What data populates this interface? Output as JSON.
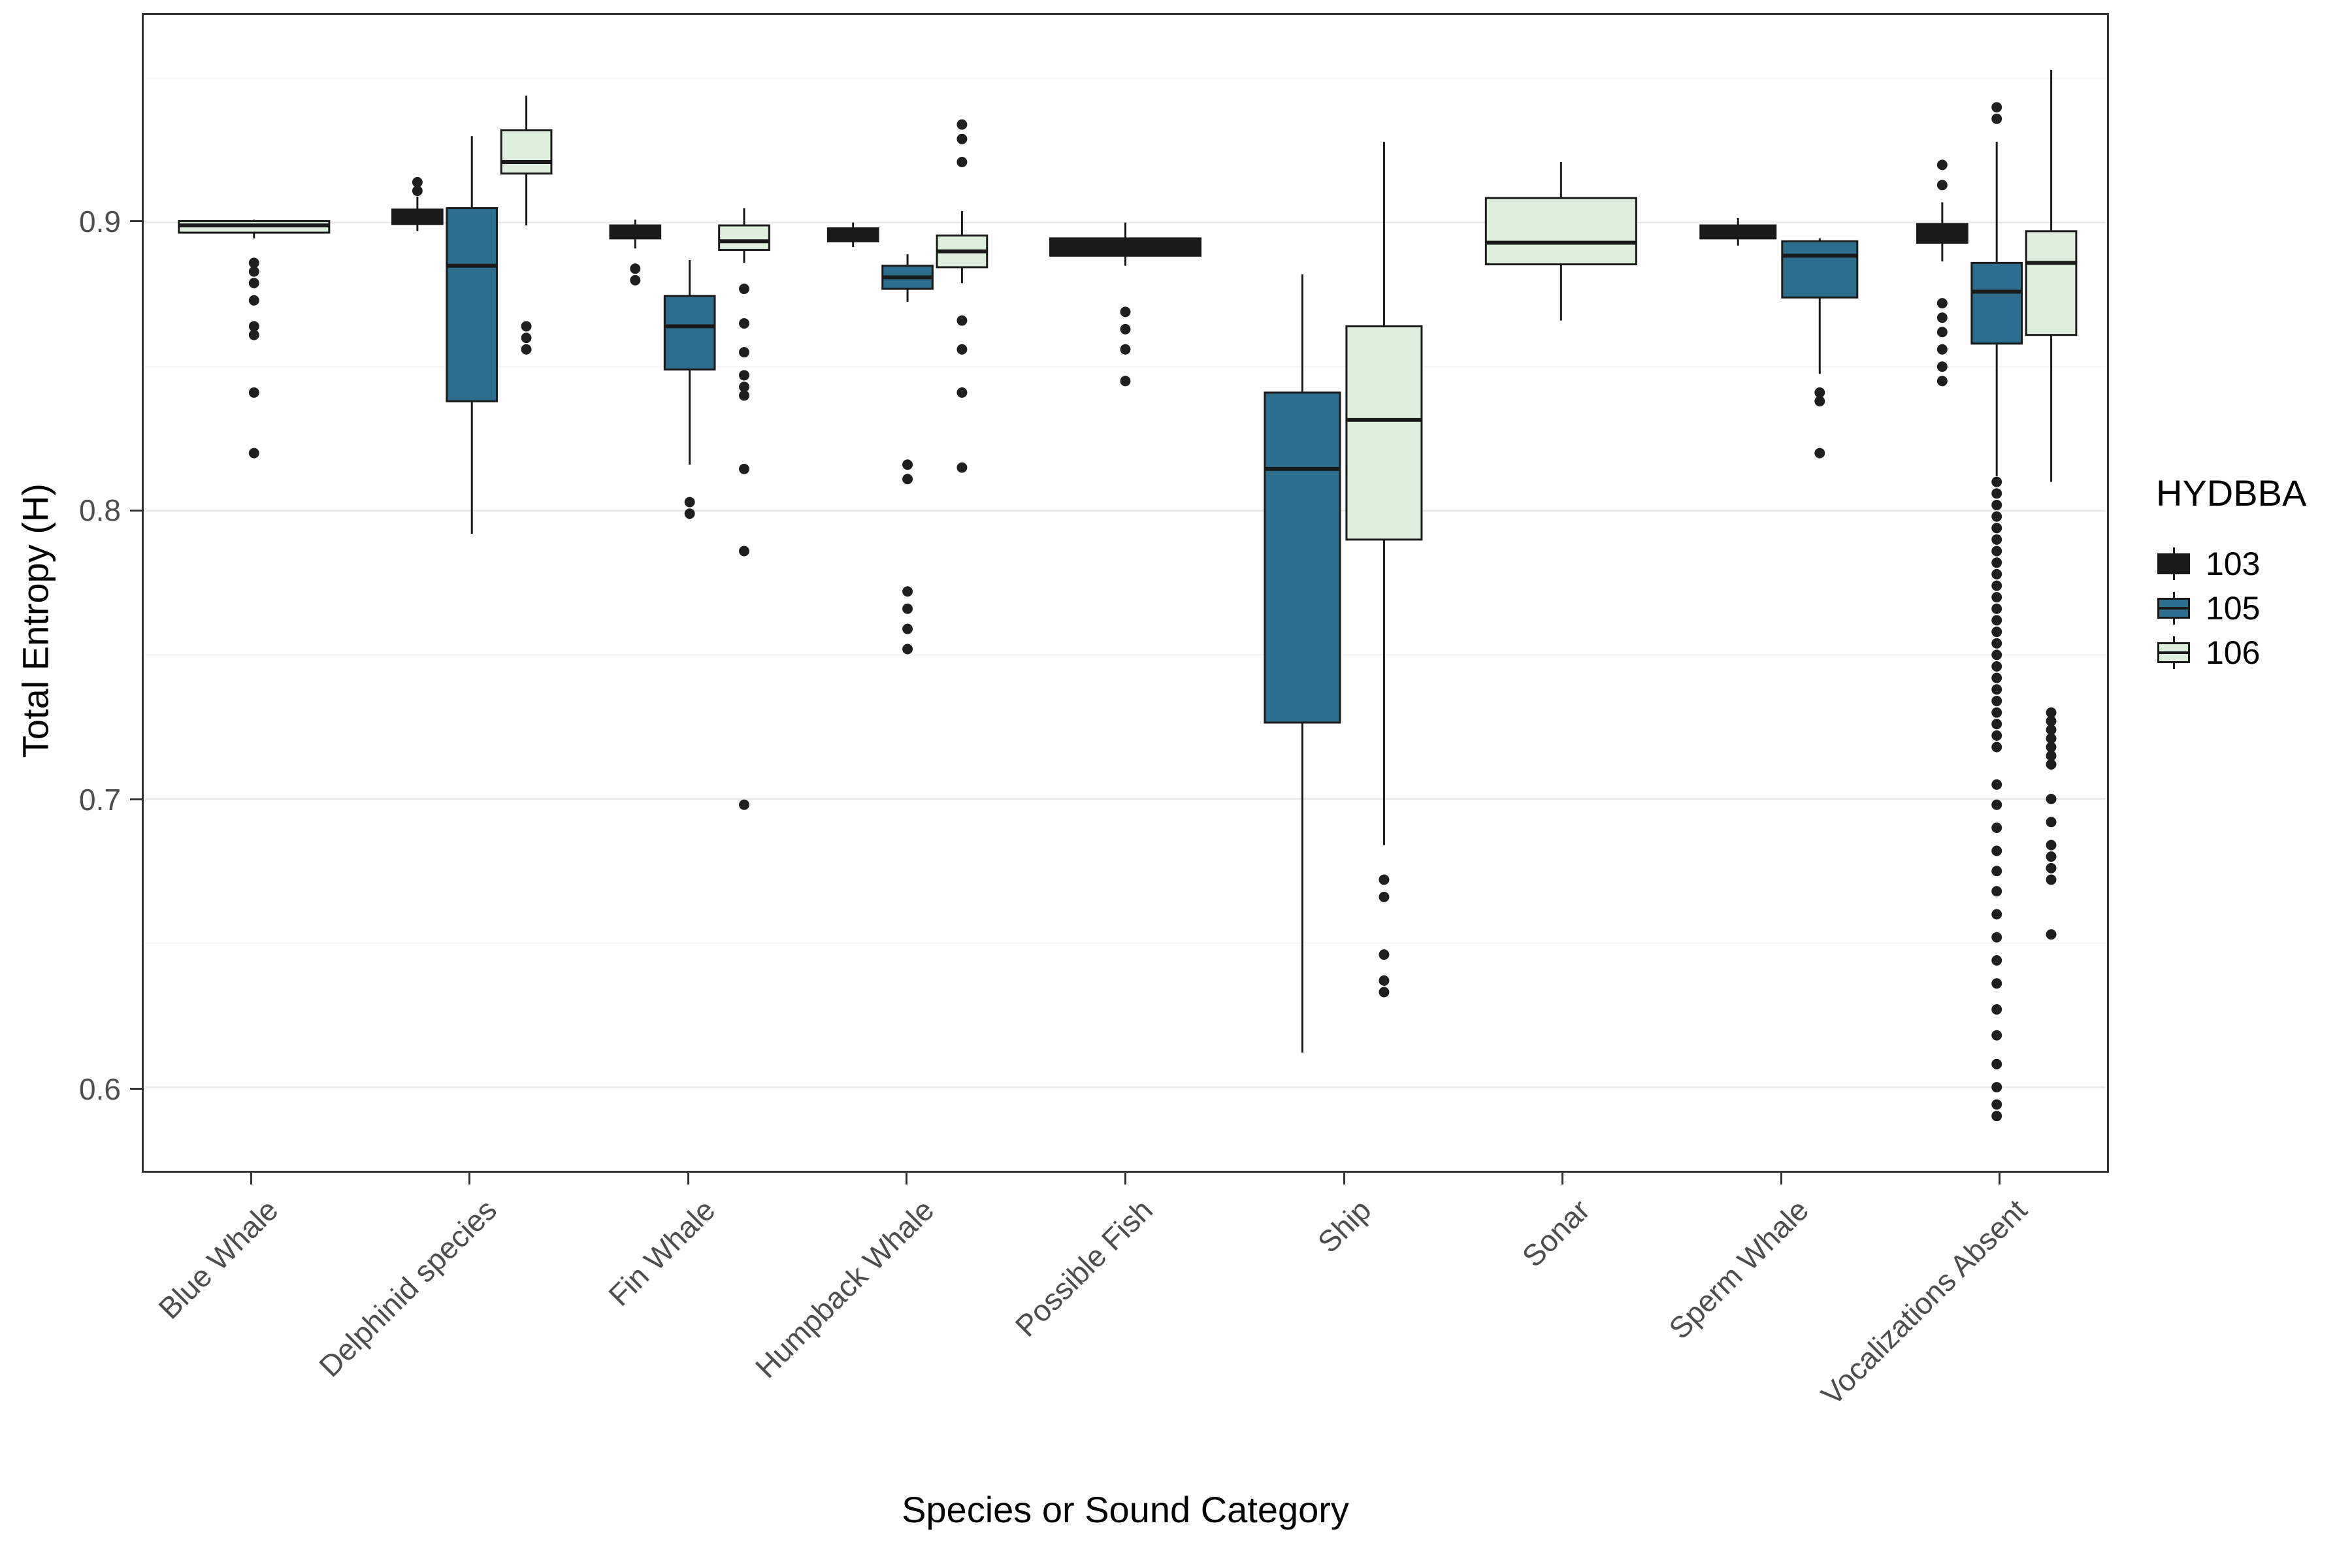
{
  "chart_data": {
    "type": "boxplot",
    "title": "",
    "xlabel": "Species or Sound Category",
    "ylabel": "Total Entropy (H)",
    "ylim": [
      0.571,
      0.972
    ],
    "yticks": [
      0.6,
      0.7,
      0.8,
      0.9
    ],
    "x_tick_angle": 45,
    "grid": "major-horizontal",
    "legend_position": "right",
    "categories": [
      "Blue Whale",
      "Delphinid species",
      "Fin Whale",
      "Humpback Whale",
      "Possible Fish",
      "Ship",
      "Sonar",
      "Sperm Whale",
      "Vocalizations Absent"
    ],
    "legend": {
      "title": "HYDBBA",
      "entries": [
        {
          "label": "103",
          "color": "#1a1a1a"
        },
        {
          "label": "105",
          "color": "#2d6e8e"
        },
        {
          "label": "106",
          "color": "#ddeedd"
        }
      ]
    },
    "style": {
      "outlier_color": "#1f1f1f",
      "box_stroke": "#1a1a1a",
      "panel_border": "#333333",
      "gridline_major": "#e9e9e9",
      "gridline_minor": "#f5f5f5"
    },
    "boxes": [
      {
        "category": "Blue Whale",
        "group": "106",
        "q1": 0.8965,
        "median": 0.899,
        "q3": 0.9005,
        "whisker_low": 0.8945,
        "whisker_high": 0.901,
        "outliers": [
          0.886,
          0.883,
          0.879,
          0.873,
          0.864,
          0.861,
          0.841,
          0.82
        ]
      },
      {
        "category": "Delphinid species",
        "group": "103",
        "q1": 0.8995,
        "median": 0.9025,
        "q3": 0.9045,
        "whisker_low": 0.897,
        "whisker_high": 0.909,
        "outliers": [
          0.914,
          0.911
        ]
      },
      {
        "category": "Delphinid species",
        "group": "105",
        "q1": 0.838,
        "median": 0.885,
        "q3": 0.905,
        "whisker_low": 0.792,
        "whisker_high": 0.93,
        "outliers": []
      },
      {
        "category": "Delphinid species",
        "group": "106",
        "q1": 0.917,
        "median": 0.921,
        "q3": 0.932,
        "whisker_low": 0.899,
        "whisker_high": 0.944,
        "outliers": [
          0.864,
          0.86,
          0.856
        ]
      },
      {
        "category": "Fin Whale",
        "group": "103",
        "q1": 0.8945,
        "median": 0.8965,
        "q3": 0.899,
        "whisker_low": 0.891,
        "whisker_high": 0.901,
        "outliers": [
          0.884,
          0.88
        ]
      },
      {
        "category": "Fin Whale",
        "group": "105",
        "q1": 0.849,
        "median": 0.864,
        "q3": 0.8745,
        "whisker_low": 0.816,
        "whisker_high": 0.887,
        "outliers": [
          0.803,
          0.799
        ]
      },
      {
        "category": "Fin Whale",
        "group": "106",
        "q1": 0.8905,
        "median": 0.8935,
        "q3": 0.899,
        "whisker_low": 0.886,
        "whisker_high": 0.905,
        "outliers": [
          0.877,
          0.865,
          0.855,
          0.847,
          0.843,
          0.84,
          0.8145,
          0.786,
          0.698
        ]
      },
      {
        "category": "Humpback Whale",
        "group": "103",
        "q1": 0.8935,
        "median": 0.8955,
        "q3": 0.898,
        "whisker_low": 0.8915,
        "whisker_high": 0.9,
        "outliers": []
      },
      {
        "category": "Humpback Whale",
        "group": "105",
        "q1": 0.877,
        "median": 0.881,
        "q3": 0.885,
        "whisker_low": 0.8725,
        "whisker_high": 0.889,
        "outliers": [
          0.816,
          0.811,
          0.772,
          0.766,
          0.759,
          0.752
        ]
      },
      {
        "category": "Humpback Whale",
        "group": "106",
        "q1": 0.8845,
        "median": 0.89,
        "q3": 0.8955,
        "whisker_low": 0.879,
        "whisker_high": 0.904,
        "outliers": [
          0.934,
          0.929,
          0.921,
          0.866,
          0.856,
          0.841,
          0.815
        ]
      },
      {
        "category": "Possible Fish",
        "group": "103",
        "q1": 0.8885,
        "median": 0.8915,
        "q3": 0.8945,
        "whisker_low": 0.885,
        "whisker_high": 0.9,
        "outliers": [
          0.869,
          0.863,
          0.856,
          0.845
        ]
      },
      {
        "category": "Ship",
        "group": "105",
        "q1": 0.7265,
        "median": 0.8145,
        "q3": 0.841,
        "whisker_low": 0.612,
        "whisker_high": 0.882,
        "outliers": []
      },
      {
        "category": "Ship",
        "group": "106",
        "q1": 0.79,
        "median": 0.8315,
        "q3": 0.864,
        "whisker_low": 0.684,
        "whisker_high": 0.928,
        "outliers": [
          0.672,
          0.666,
          0.646,
          0.637,
          0.633
        ]
      },
      {
        "category": "Sonar",
        "group": "106",
        "q1": 0.8855,
        "median": 0.893,
        "q3": 0.9085,
        "whisker_low": 0.866,
        "whisker_high": 0.921,
        "outliers": []
      },
      {
        "category": "Sperm Whale",
        "group": "103",
        "q1": 0.8945,
        "median": 0.8965,
        "q3": 0.899,
        "whisker_low": 0.892,
        "whisker_high": 0.9015,
        "outliers": []
      },
      {
        "category": "Sperm Whale",
        "group": "105",
        "q1": 0.874,
        "median": 0.8885,
        "q3": 0.8935,
        "whisker_low": 0.8475,
        "whisker_high": 0.8945,
        "outliers": [
          0.841,
          0.838,
          0.82
        ]
      },
      {
        "category": "Vocalizations Absent",
        "group": "103",
        "q1": 0.893,
        "median": 0.8965,
        "q3": 0.8995,
        "whisker_low": 0.8865,
        "whisker_high": 0.907,
        "outliers": [
          0.92,
          0.913,
          0.872,
          0.867,
          0.862,
          0.856,
          0.85,
          0.845
        ]
      },
      {
        "category": "Vocalizations Absent",
        "group": "105",
        "q1": 0.858,
        "median": 0.876,
        "q3": 0.886,
        "whisker_low": 0.812,
        "whisker_high": 0.928,
        "outliers": [
          0.94,
          0.936,
          0.81,
          0.806,
          0.802,
          0.798,
          0.794,
          0.79,
          0.786,
          0.782,
          0.778,
          0.774,
          0.77,
          0.766,
          0.762,
          0.758,
          0.754,
          0.75,
          0.746,
          0.742,
          0.738,
          0.734,
          0.73,
          0.726,
          0.722,
          0.718,
          0.705,
          0.698,
          0.69,
          0.682,
          0.675,
          0.668,
          0.66,
          0.652,
          0.644,
          0.636,
          0.627,
          0.618,
          0.608,
          0.6,
          0.594,
          0.59
        ]
      },
      {
        "category": "Vocalizations Absent",
        "group": "106",
        "q1": 0.861,
        "median": 0.886,
        "q3": 0.897,
        "whisker_low": 0.81,
        "whisker_high": 0.953,
        "outliers": [
          0.73,
          0.727,
          0.724,
          0.721,
          0.718,
          0.715,
          0.712,
          0.7,
          0.692,
          0.684,
          0.68,
          0.676,
          0.672,
          0.653
        ]
      }
    ]
  }
}
